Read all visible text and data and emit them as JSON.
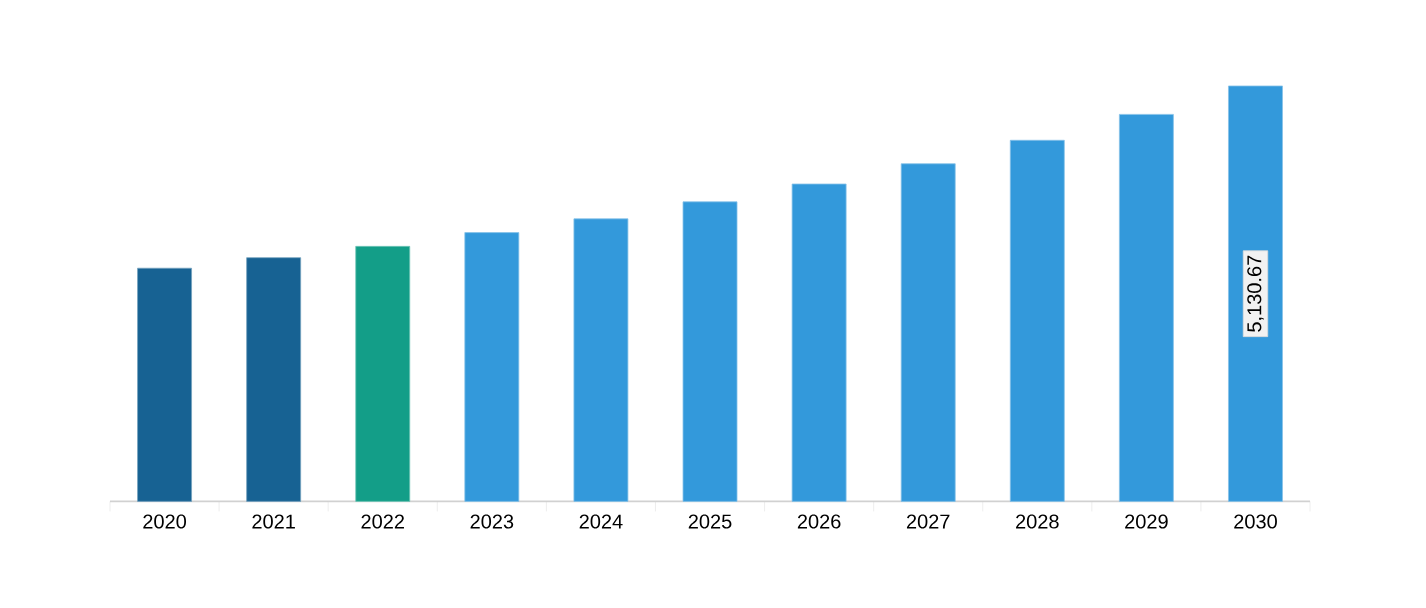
{
  "chart_data": {
    "type": "bar",
    "categories": [
      "2020",
      "2021",
      "2022",
      "2023",
      "2024",
      "2025",
      "2026",
      "2027",
      "2028",
      "2029",
      "2030"
    ],
    "values": [
      2880,
      3010,
      3150,
      3320,
      3490,
      3700,
      3920,
      4170,
      4460,
      4780,
      5130.67
    ],
    "colors": [
      "#176293",
      "#176293",
      "#139e88",
      "#3399db",
      "#3399db",
      "#3399db",
      "#3399db",
      "#3399db",
      "#3399db",
      "#3399db",
      "#3399db"
    ],
    "value_labels": [
      null,
      null,
      null,
      null,
      null,
      null,
      null,
      null,
      null,
      null,
      "5,130.67"
    ]
  }
}
